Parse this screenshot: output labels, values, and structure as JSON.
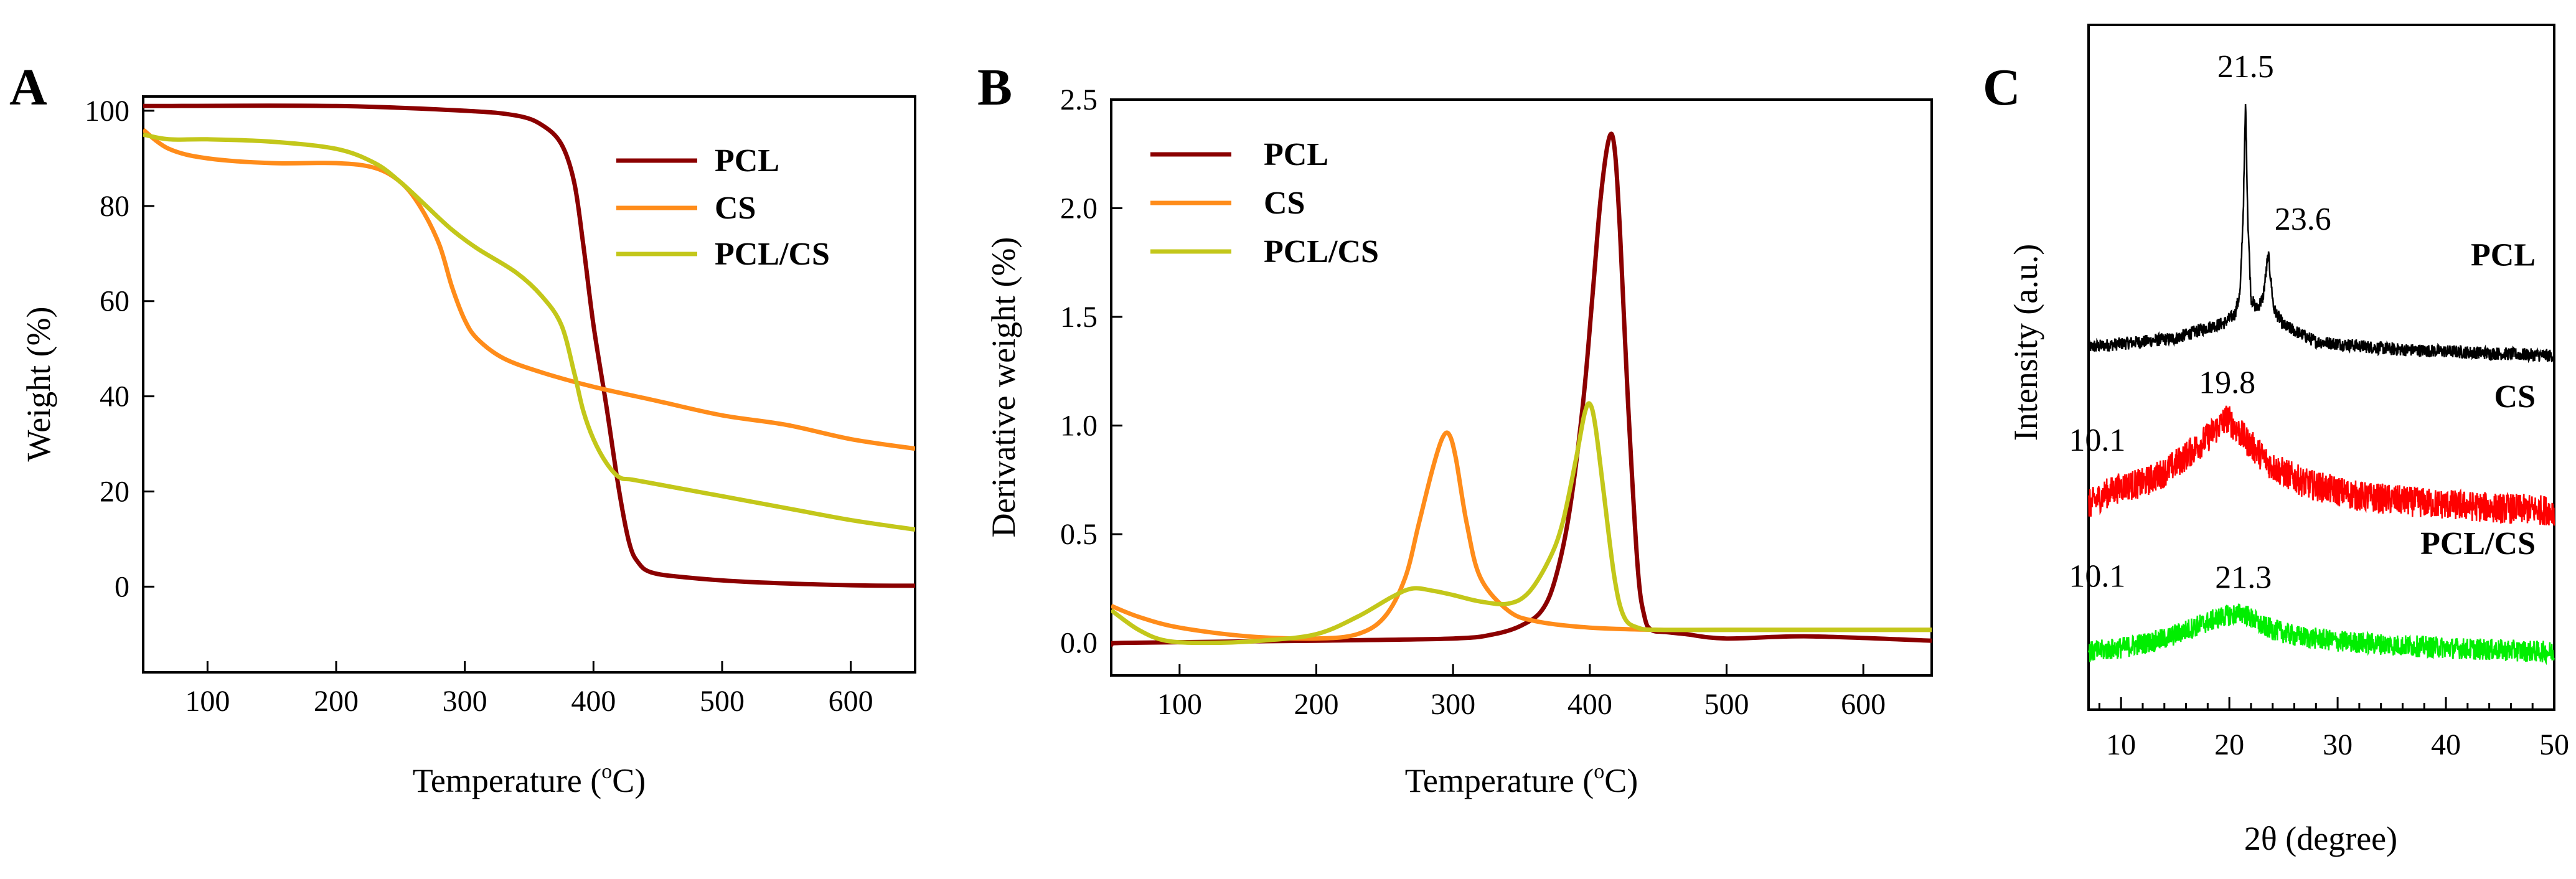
{
  "colors": {
    "PCL": "#8b0000",
    "CS": "#ff8c1a",
    "PCL/CS": "#c3c71a"
  },
  "chart_data": [
    {
      "panel": "A",
      "type": "line",
      "xlabel": "Temperature (",
      "xlabel_sup": "o",
      "xlabel_tail": "C)",
      "ylabel": "Weight (%)",
      "xlim": [
        50,
        650
      ],
      "ylim": [
        -18,
        103
      ],
      "xticks": [
        100,
        200,
        300,
        400,
        500,
        600
      ],
      "yticks": [
        0,
        20,
        40,
        60,
        80,
        100
      ],
      "legend": [
        "PCL",
        "CS",
        "PCL/CS"
      ],
      "legend_position": "top-right",
      "series": [
        {
          "name": "PCL",
          "color": "#8b0000",
          "x": [
            50,
            200,
            300,
            340,
            360,
            375,
            385,
            392,
            400,
            410,
            420,
            428,
            435,
            445,
            470,
            520,
            600,
            650
          ],
          "y": [
            101,
            101,
            100,
            99,
            97,
            93,
            85,
            72,
            55,
            38,
            20,
            9,
            5,
            3,
            2,
            1,
            0.3,
            0.2
          ]
        },
        {
          "name": "CS",
          "color": "#ff8c1a",
          "x": [
            50,
            70,
            100,
            150,
            200,
            230,
            250,
            265,
            280,
            290,
            300,
            310,
            330,
            360,
            400,
            450,
            500,
            550,
            600,
            650
          ],
          "y": [
            96,
            92,
            90,
            89,
            89,
            88,
            85,
            80,
            72,
            63,
            56,
            52,
            48,
            45,
            42,
            39,
            36,
            34,
            31,
            29
          ]
        },
        {
          "name": "PCL/CS",
          "color": "#c3c71a",
          "x": [
            50,
            70,
            100,
            150,
            200,
            230,
            250,
            270,
            290,
            310,
            340,
            360,
            375,
            385,
            392,
            400,
            410,
            420,
            430,
            450,
            500,
            550,
            600,
            650
          ],
          "y": [
            95,
            94,
            94,
            93.5,
            92,
            89,
            85,
            80,
            75,
            71,
            66,
            61,
            55,
            45,
            37,
            31,
            26,
            23,
            22.5,
            21.5,
            19,
            16.5,
            14,
            12
          ]
        }
      ]
    },
    {
      "panel": "B",
      "type": "line",
      "xlabel": "Temperature (",
      "xlabel_sup": "o",
      "xlabel_tail": "C)",
      "ylabel": "Derivative weight (%)",
      "xlim": [
        50,
        650
      ],
      "ylim": [
        -0.15,
        2.5
      ],
      "xticks": [
        100,
        200,
        300,
        400,
        500,
        600
      ],
      "yticks": [
        0.0,
        0.5,
        1.0,
        1.5,
        2.0,
        2.5
      ],
      "ytick_labels": [
        "0.0",
        "0.5",
        "1.0",
        "1.5",
        "2.0",
        "2.5"
      ],
      "legend": [
        "PCL",
        "CS",
        "PCL/CS"
      ],
      "legend_position": "top-left",
      "series": [
        {
          "name": "PCL",
          "color": "#8b0000",
          "x": [
            50,
            60,
            200,
            300,
            330,
            350,
            365,
            375,
            385,
            395,
            402,
            408,
            414,
            418,
            422,
            428,
            435,
            440,
            445,
            455,
            470,
            500,
            560,
            650
          ],
          "y": [
            -0.01,
            0.0,
            0.01,
            0.02,
            0.04,
            0.08,
            0.15,
            0.3,
            0.6,
            1.1,
            1.6,
            2.05,
            2.32,
            2.28,
            1.9,
            1.1,
            0.35,
            0.12,
            0.06,
            0.05,
            0.04,
            0.02,
            0.03,
            0.01
          ]
        },
        {
          "name": "CS",
          "color": "#ff8c1a",
          "x": [
            50,
            70,
            100,
            150,
            200,
            230,
            250,
            265,
            275,
            285,
            292,
            297,
            302,
            310,
            320,
            340,
            360,
            400,
            450,
            500,
            650
          ],
          "y": [
            0.17,
            0.12,
            0.07,
            0.03,
            0.02,
            0.04,
            0.12,
            0.3,
            0.55,
            0.8,
            0.94,
            0.96,
            0.85,
            0.55,
            0.3,
            0.15,
            0.1,
            0.07,
            0.06,
            0.06,
            0.06
          ]
        },
        {
          "name": "PCL/CS",
          "color": "#c3c71a",
          "x": [
            50,
            70,
            90,
            120,
            160,
            200,
            230,
            255,
            270,
            285,
            300,
            320,
            340,
            355,
            370,
            380,
            390,
            396,
            400,
            404,
            410,
            418,
            425,
            435,
            450,
            500,
            650
          ],
          "y": [
            0.15,
            0.06,
            0.01,
            0.0,
            0.01,
            0.04,
            0.12,
            0.21,
            0.25,
            0.24,
            0.22,
            0.19,
            0.18,
            0.23,
            0.38,
            0.55,
            0.85,
            1.05,
            1.1,
            1.0,
            0.7,
            0.3,
            0.12,
            0.07,
            0.06,
            0.06,
            0.06
          ]
        }
      ]
    },
    {
      "panel": "C",
      "type": "line",
      "xlabel": "2θ (degree)",
      "ylabel": "Intensity (a.u.)",
      "xlim": [
        7,
        50
      ],
      "xticks": [
        10,
        20,
        30,
        40,
        50
      ],
      "y_offset_units": "a.u.",
      "series": [
        {
          "name": "PCL",
          "color": "#000000",
          "offset": 3.0,
          "noise": 0.06,
          "x": [
            7,
            15,
            18,
            19.5,
            20.5,
            21,
            21.3,
            21.5,
            21.7,
            22,
            22.5,
            23.1,
            23.6,
            24.1,
            25,
            28,
            35,
            50
          ],
          "y": [
            0.1,
            0.18,
            0.28,
            0.32,
            0.4,
            0.6,
            1.4,
            2.35,
            1.3,
            0.55,
            0.45,
            0.55,
            0.95,
            0.45,
            0.3,
            0.15,
            0.08,
            0.02
          ]
        },
        {
          "name": "CS",
          "color": "#ff0000",
          "offset": 1.55,
          "noise": 0.14,
          "x": [
            7,
            8.5,
            10.1,
            12,
            14,
            16,
            18,
            19.8,
            21.5,
            24,
            27,
            32,
            38,
            45,
            50
          ],
          "y": [
            0.1,
            0.2,
            0.27,
            0.3,
            0.4,
            0.55,
            0.72,
            0.9,
            0.7,
            0.45,
            0.3,
            0.18,
            0.12,
            0.07,
            0.05
          ]
        },
        {
          "name": "PCL/CS",
          "color": "#00ee00",
          "offset": 0.3,
          "noise": 0.1,
          "x": [
            7,
            10.1,
            14,
            17,
            19.5,
            21.3,
            23,
            26,
            30,
            36,
            42,
            50
          ],
          "y": [
            0.0,
            0.04,
            0.12,
            0.24,
            0.33,
            0.36,
            0.24,
            0.15,
            0.1,
            0.06,
            0.03,
            0.0
          ]
        }
      ],
      "annotations": [
        {
          "text": "21.5",
          "x": 21.5,
          "series": "PCL"
        },
        {
          "text": "23.6",
          "x": 23.6,
          "series": "PCL"
        },
        {
          "text": "19.8",
          "x": 19.8,
          "series": "CS"
        },
        {
          "text": "10.1",
          "x": 10.1,
          "series": "CS"
        },
        {
          "text": "21.3",
          "x": 21.3,
          "series": "PCL/CS"
        },
        {
          "text": "10.1",
          "x": 10.1,
          "series": "PCL/CS"
        }
      ],
      "trace_labels": [
        "PCL",
        "CS",
        "PCL/CS"
      ]
    }
  ],
  "panels": {
    "a": "A",
    "b": "B",
    "c": "C"
  }
}
